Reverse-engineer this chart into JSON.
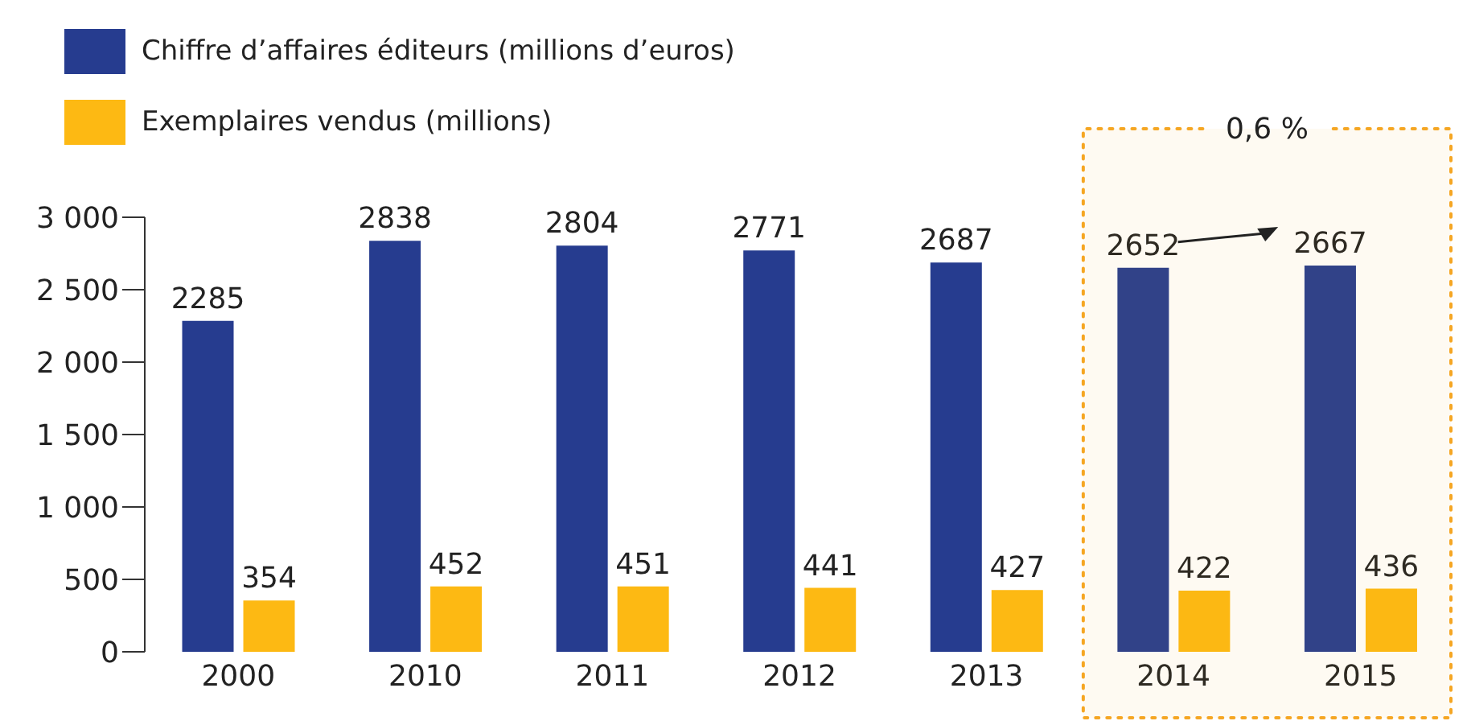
{
  "chart_data": {
    "type": "bar",
    "categories": [
      "2000",
      "2010",
      "2011",
      "2012",
      "2013",
      "2014",
      "2015"
    ],
    "series": [
      {
        "name": "Chiffre d’affaires éditeurs (millions d’euros)",
        "color": "#263c8f",
        "values": [
          2285,
          2838,
          2804,
          2771,
          2687,
          2652,
          2667
        ]
      },
      {
        "name": "Exemplaires vendus (millions)",
        "color": "#fdb913",
        "values": [
          354,
          452,
          451,
          441,
          427,
          422,
          436
        ]
      }
    ],
    "ylim": [
      0,
      3000
    ],
    "yticks": [
      0,
      {
        "value": 500,
        "label": "500"
      },
      {
        "value": 1000,
        "label": "1 000"
      },
      {
        "value": 1500,
        "label": "1 500"
      },
      {
        "value": 2000,
        "label": "2 000"
      },
      {
        "value": 2500,
        "label": "2 500"
      },
      {
        "value": 3000,
        "label": "3 000"
      }
    ],
    "data_labels": true,
    "grid": false,
    "legend": "top left",
    "bands": [
      {
        "axis": "x",
        "from": "2014",
        "to": "2015",
        "label": "0,6 %",
        "color": "#f5a623"
      }
    ]
  }
}
